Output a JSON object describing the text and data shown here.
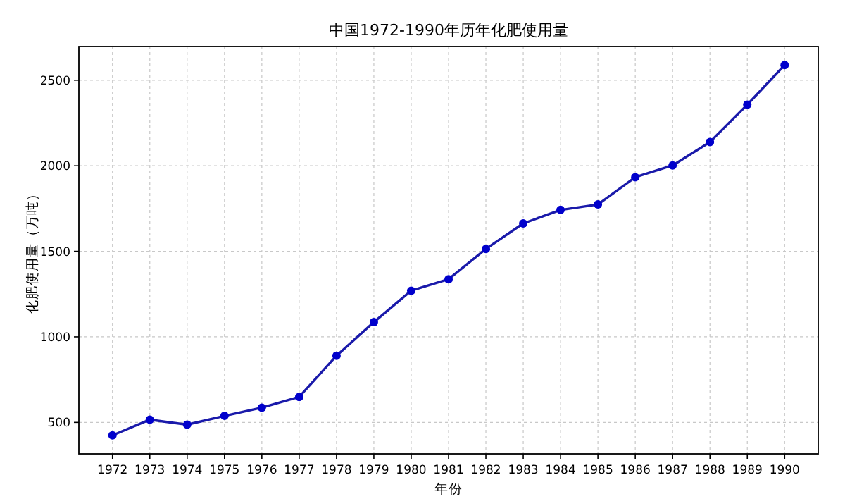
{
  "chart_data": {
    "type": "line",
    "title": "中国1972-1990年历年化肥使用量",
    "xlabel": "年份",
    "ylabel": "化肥使用量（万吨）",
    "x": [
      1972,
      1973,
      1974,
      1975,
      1976,
      1977,
      1978,
      1979,
      1980,
      1981,
      1982,
      1983,
      1984,
      1985,
      1986,
      1987,
      1988,
      1989,
      1990
    ],
    "series": [
      {
        "color": "#1a1aaa",
        "values": [
          424,
          516,
          487,
          538,
          586,
          649,
          890,
          1086,
          1270,
          1337,
          1514,
          1663,
          1742,
          1774,
          1933,
          2002,
          2139,
          2357,
          2589
        ]
      }
    ],
    "xlim": [
      1971.1,
      1990.9
    ],
    "ylim": [
      316,
      2697
    ],
    "xticks": [
      1972,
      1973,
      1974,
      1975,
      1976,
      1977,
      1978,
      1979,
      1980,
      1981,
      1982,
      1983,
      1984,
      1985,
      1986,
      1987,
      1988,
      1989,
      1990
    ],
    "yticks": [
      500,
      1000,
      1500,
      2000,
      2500
    ],
    "grid": true,
    "marker": "circle",
    "line_style": "solid"
  }
}
